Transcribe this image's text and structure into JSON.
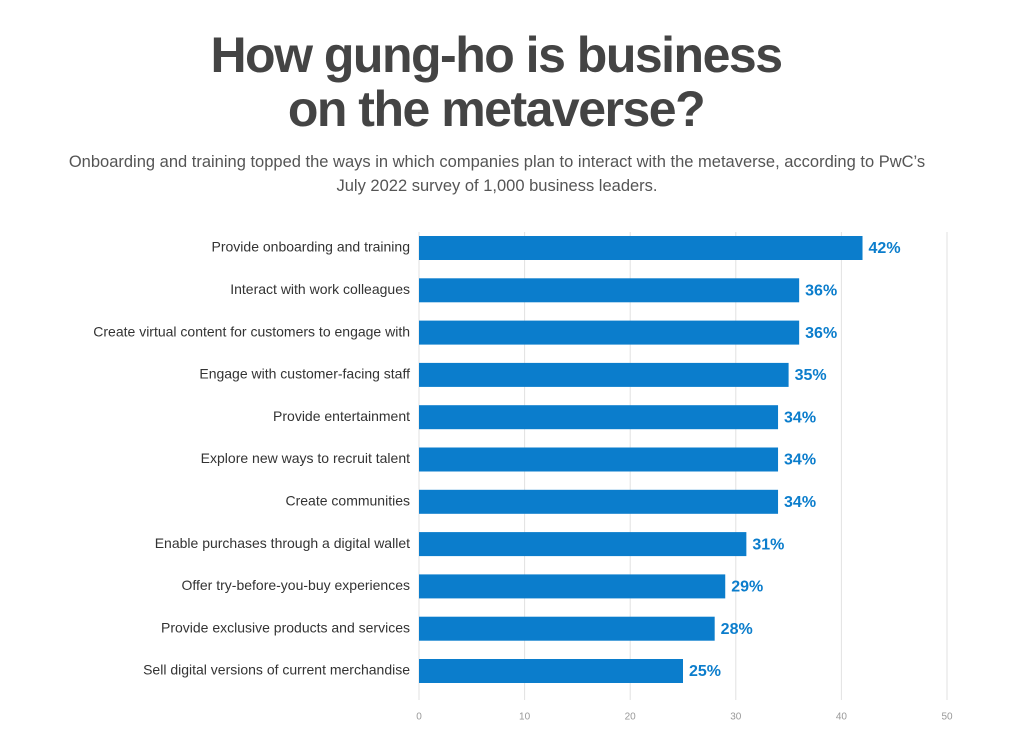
{
  "chart_data": {
    "type": "bar",
    "orientation": "horizontal",
    "title": "How gung-ho is business on the metaverse?",
    "subtitle": "Onboarding and training topped the ways in which companies plan to interact with the metaverse, according to PwC’s July 2022 survey of 1,000 business leaders.",
    "categories": [
      "Provide onboarding and training",
      "Interact with work colleagues",
      "Create virtual content for customers to engage with",
      "Engage with customer-facing staff",
      "Provide entertainment",
      "Explore new ways to recruit talent",
      "Create communities",
      "Enable purchases through a digital wallet",
      "Offer try-before-you-buy experiences",
      "Provide exclusive products and services",
      "Sell digital versions of current merchandise"
    ],
    "values": [
      42,
      36,
      36,
      35,
      34,
      34,
      34,
      31,
      29,
      28,
      25
    ],
    "value_labels": [
      "42%",
      "36%",
      "36%",
      "35%",
      "34%",
      "34%",
      "34%",
      "31%",
      "29%",
      "28%",
      "25%"
    ],
    "color": "#0b7dcc",
    "xlim": [
      0,
      50
    ],
    "xticks": [
      0,
      10,
      20,
      30,
      40,
      50
    ],
    "grid": true
  }
}
